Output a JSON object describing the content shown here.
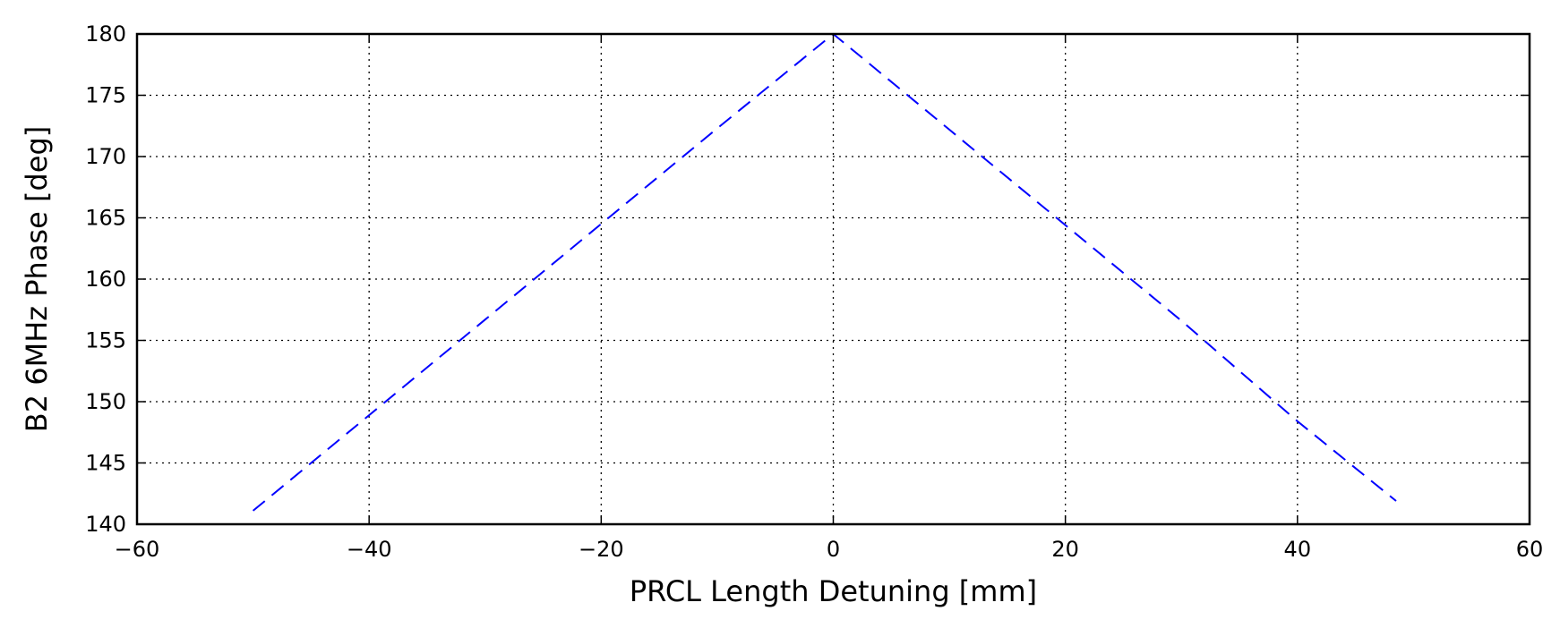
{
  "chart_data": {
    "type": "line",
    "title": "",
    "xlabel": "PRCL Length Detuning [mm]",
    "ylabel": "B2 6MHz Phase [deg]",
    "xlim": [
      -60,
      60
    ],
    "ylim": [
      140,
      180
    ],
    "xticks": [
      -60,
      -40,
      -20,
      0,
      20,
      40,
      60
    ],
    "yticks": [
      140,
      145,
      150,
      155,
      160,
      165,
      170,
      175,
      180
    ],
    "xtick_labels": [
      "−60",
      "−40",
      "−20",
      "0",
      "20",
      "40",
      "60"
    ],
    "ytick_labels": [
      "140",
      "145",
      "150",
      "155",
      "160",
      "165",
      "170",
      "175",
      "180"
    ],
    "grid": true,
    "series": [
      {
        "color": "#0000ff",
        "style": "dashed",
        "x": [
          -50,
          -40,
          -30,
          -20,
          -10,
          0,
          10,
          20,
          30,
          40,
          48.5
        ],
        "y": [
          141.1,
          148.9,
          156.7,
          164.5,
          172.3,
          180,
          172.2,
          164.4,
          156.6,
          148.4,
          141.9
        ]
      }
    ]
  }
}
